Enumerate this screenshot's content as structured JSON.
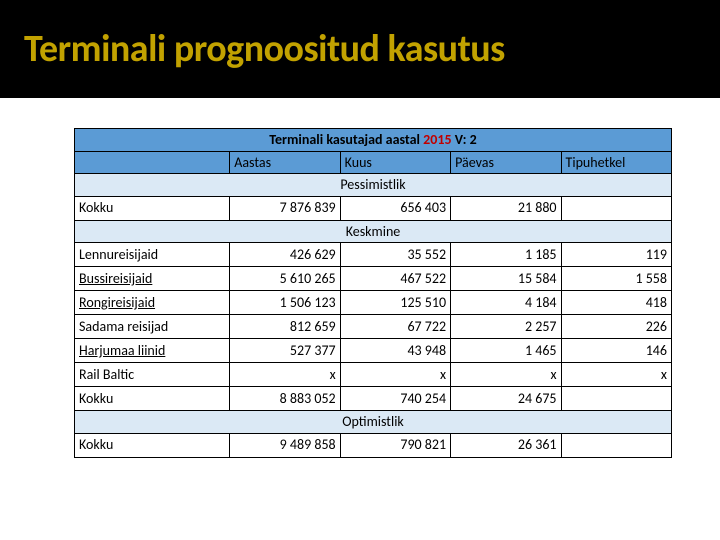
{
  "title": "Terminali prognoositud kasutus",
  "caption_prefix": "Terminali kasutajad aastal ",
  "caption_year": "2015",
  "caption_suffix": " V: 2",
  "columns": [
    "",
    "Aastas",
    "Kuus",
    "Päevas",
    "Tipuhetkel"
  ],
  "sections": [
    "Pessimistlik",
    "Keskmine",
    "Optimistlik"
  ],
  "rowlabels": {
    "kokku": "Kokku",
    "lennu": "Lennureisijaid",
    "bussi": "Bussireisijaid",
    "rongi": "Rongireisijaid",
    "sadama": "Sadama reisijad",
    "harju": "Harjumaa liinid",
    "rail": "Rail Baltic"
  },
  "pess": {
    "kokku": [
      "7 876 839",
      "656 403",
      "21 880",
      ""
    ]
  },
  "kesk": {
    "lennu": [
      "426 629",
      "35 552",
      "1 185",
      "119"
    ],
    "bussi": [
      "5 610 265",
      "467 522",
      "15 584",
      "1 558"
    ],
    "rongi": [
      "1 506 123",
      "125 510",
      "4 184",
      "418"
    ],
    "sadama": [
      "812 659",
      "67 722",
      "2 257",
      "226"
    ],
    "harju": [
      "527 377",
      "43 948",
      "1 465",
      "146"
    ],
    "rail": [
      "x",
      "x",
      "x",
      "x"
    ],
    "kokku": [
      "8 883 052",
      "740 254",
      "24 675",
      ""
    ]
  },
  "opt": {
    "kokku": [
      "9 489 858",
      "790 821",
      "26 361",
      ""
    ]
  },
  "styling": {
    "title_color": "#c2a200",
    "title_bg": "#000000",
    "header_bg": "#5b9bd5",
    "section_bg": "#dbe9f5",
    "year_color": "#c00000",
    "border_color": "#000000",
    "title_fontsize": 38,
    "cell_fontsize": 14
  }
}
